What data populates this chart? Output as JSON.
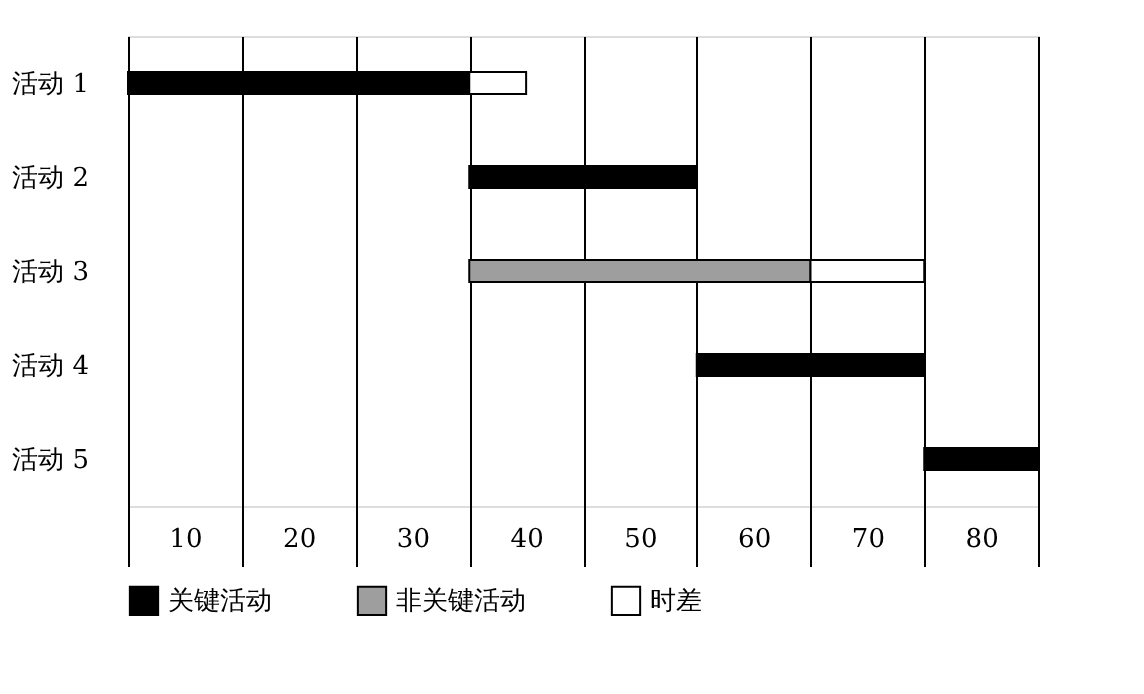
{
  "chart_data": {
    "type": "bar",
    "orientation": "horizontal",
    "categories": [
      "活动 1",
      "活动 2",
      "活动 3",
      "活动 4",
      "活动 5"
    ],
    "series": [
      {
        "name": "关键活动",
        "color": "#000000",
        "values": [
          30,
          20,
          null,
          20,
          10
        ],
        "base": [
          5,
          35,
          null,
          55,
          75
        ]
      },
      {
        "name": "非关键活动",
        "color": "#9e9e9e",
        "values": [
          null,
          null,
          30,
          null,
          null
        ],
        "base": [
          null,
          null,
          35,
          null,
          null
        ]
      },
      {
        "name": "时差",
        "color": "#ffffff",
        "values": [
          5,
          null,
          10,
          null,
          null
        ],
        "base": [
          35,
          null,
          65,
          null,
          null
        ]
      }
    ],
    "xlim": [
      5,
      85
    ],
    "xticks": [
      {
        "value": 5,
        "label": null
      },
      10,
      {
        "value": 15,
        "label": null
      },
      20,
      {
        "value": 25,
        "label": null
      },
      30,
      {
        "value": 35,
        "label": null
      },
      40,
      {
        "value": 45,
        "label": null
      },
      50,
      {
        "value": 55,
        "label": null
      },
      60,
      {
        "value": 65,
        "label": null
      },
      70,
      {
        "value": 75,
        "label": null
      },
      80,
      {
        "value": 85,
        "label": null
      }
    ],
    "grid": "x",
    "legend": "bottom"
  }
}
